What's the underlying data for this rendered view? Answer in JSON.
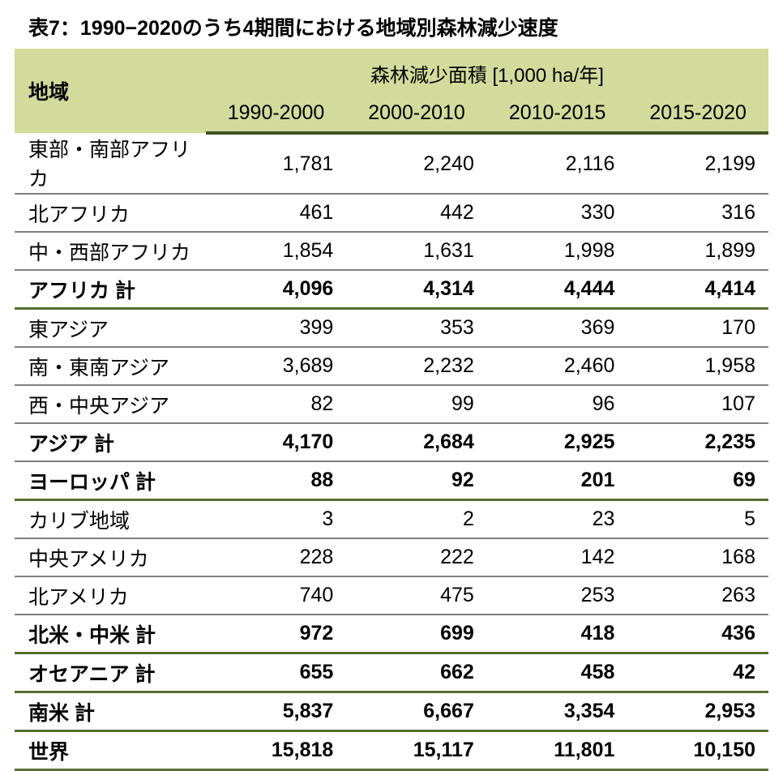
{
  "title": "表7：1990−2020のうち4期間における地域別森林減少速度",
  "header": {
    "region_label": "地域",
    "unit_label": "森林減少面積 [1,000 ha/年]",
    "periods": [
      "1990-2000",
      "2000-2010",
      "2010-2015",
      "2015-2020"
    ]
  },
  "chart_data": {
    "type": "table",
    "title": "表7：1990−2020のうち4期間における地域別森林減少速度",
    "unit": "1,000 ha/年",
    "columns": [
      "地域",
      "1990-2000",
      "2000-2010",
      "2010-2015",
      "2015-2020"
    ],
    "rows": [
      {
        "region": "東部・南部アフリカ",
        "display": [
          "1,781",
          "2,240",
          "2,116",
          "2,199"
        ],
        "values": [
          1781,
          2240,
          2116,
          2199
        ],
        "total": false,
        "separator": "gray"
      },
      {
        "region": "北アフリカ",
        "display": [
          "461",
          "442",
          "330",
          "316"
        ],
        "values": [
          461,
          442,
          330,
          316
        ],
        "total": false,
        "separator": "gray"
      },
      {
        "region": "中・西部アフリカ",
        "display": [
          "1,854",
          "1,631",
          "1,998",
          "1,899"
        ],
        "values": [
          1854,
          1631,
          1998,
          1899
        ],
        "total": false,
        "separator": "gray"
      },
      {
        "region": "アフリカ 計",
        "display": [
          "4,096",
          "4,314",
          "4,444",
          "4,414"
        ],
        "values": [
          4096,
          4314,
          4444,
          4414
        ],
        "total": true,
        "separator": "green"
      },
      {
        "region": "東アジア",
        "display": [
          "399",
          "353",
          "369",
          "170"
        ],
        "values": [
          399,
          353,
          369,
          170
        ],
        "total": false,
        "separator": "gray"
      },
      {
        "region": "南・東南アジア",
        "display": [
          "3,689",
          "2,232",
          "2,460",
          "1,958"
        ],
        "values": [
          3689,
          2232,
          2460,
          1958
        ],
        "total": false,
        "separator": "gray"
      },
      {
        "region": "西・中央アジア",
        "display": [
          "82",
          "99",
          "96",
          "107"
        ],
        "values": [
          82,
          99,
          96,
          107
        ],
        "total": false,
        "separator": "gray"
      },
      {
        "region": "アジア 計",
        "display": [
          "4,170",
          "2,684",
          "2,925",
          "2,235"
        ],
        "values": [
          4170,
          2684,
          2925,
          2235
        ],
        "total": true,
        "separator": "gray"
      },
      {
        "region": "ヨーロッパ 計",
        "display": [
          "88",
          "92",
          "201",
          "69"
        ],
        "values": [
          88,
          92,
          201,
          69
        ],
        "total": true,
        "separator": "green"
      },
      {
        "region": "カリブ地域",
        "display": [
          "3",
          "2",
          "23",
          "5"
        ],
        "values": [
          3,
          2,
          23,
          5
        ],
        "total": false,
        "separator": "gray"
      },
      {
        "region": "中央アメリカ",
        "display": [
          "228",
          "222",
          "142",
          "168"
        ],
        "values": [
          228,
          222,
          142,
          168
        ],
        "total": false,
        "separator": "gray"
      },
      {
        "region": "北アメリカ",
        "display": [
          "740",
          "475",
          "253",
          "263"
        ],
        "values": [
          740,
          475,
          253,
          263
        ],
        "total": false,
        "separator": "gray"
      },
      {
        "region": "北米・中米 計",
        "display": [
          "972",
          "699",
          "418",
          "436"
        ],
        "values": [
          972,
          699,
          418,
          436
        ],
        "total": true,
        "separator": "green"
      },
      {
        "region": "オセアニア 計",
        "display": [
          "655",
          "662",
          "458",
          "42"
        ],
        "values": [
          655,
          662,
          458,
          42
        ],
        "total": true,
        "separator": "green"
      },
      {
        "region": "南米 計",
        "display": [
          "5,837",
          "6,667",
          "3,354",
          "2,953"
        ],
        "values": [
          5837,
          6667,
          3354,
          2953
        ],
        "total": true,
        "separator": "green"
      },
      {
        "region": "世界",
        "display": [
          "15,818",
          "15,117",
          "11,801",
          "10,150"
        ],
        "values": [
          15818,
          15117,
          11801,
          10150
        ],
        "total": true,
        "separator": "green"
      }
    ]
  },
  "colors": {
    "header_bg": "#d2db9c",
    "border_green_dark": "#42521f",
    "border_green": "#54702f",
    "border_gray": "#7f7f7f",
    "text": "#000000"
  }
}
